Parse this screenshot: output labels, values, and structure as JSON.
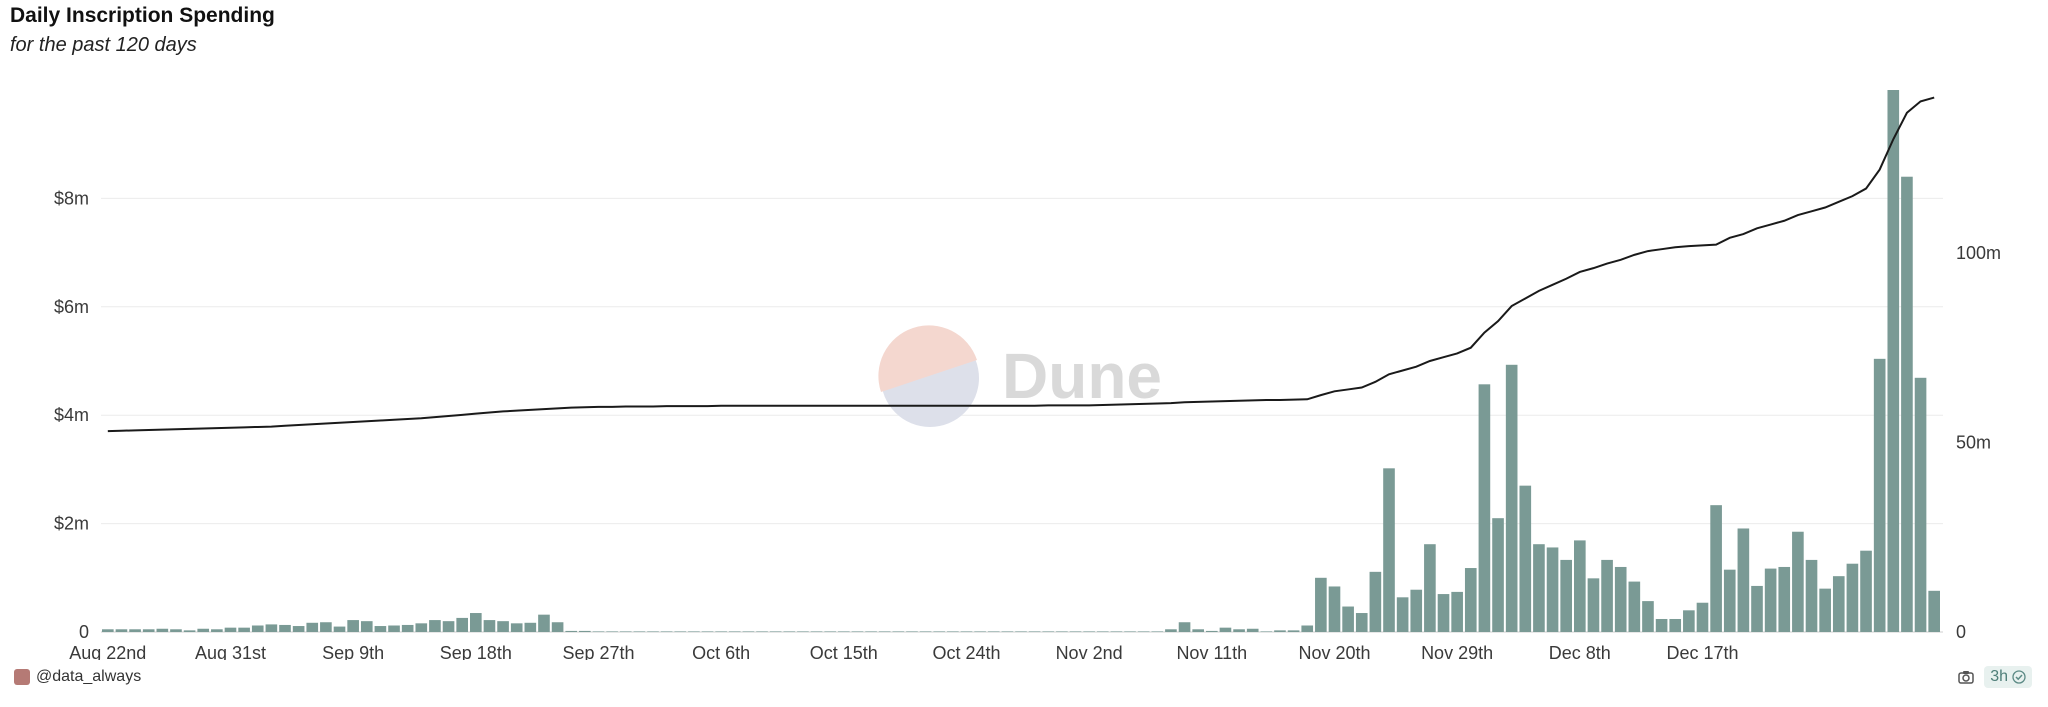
{
  "header": {
    "title": "Daily Inscription Spending",
    "subtitle": "for the past 120 days"
  },
  "watermark": {
    "text": "Dune"
  },
  "footer": {
    "user": "@data_always",
    "refresh_age": "3h",
    "icons": {
      "user": "avatar-icon",
      "camera": "camera-icon",
      "check": "check-icon"
    }
  },
  "colors": {
    "bar": "#7a9a95",
    "line": "#1a1a1a",
    "grid": "#ececec",
    "footer_accent": "#5c8a85"
  },
  "chart_data": {
    "type": "bar",
    "title": "Daily Inscription Spending",
    "subtitle": "for the past 120 days",
    "x_start": "Aug 22",
    "x_ticks": [
      "Aug 22nd",
      "Aug 31st",
      "Sep 9th",
      "Sep 18th",
      "Sep 27th",
      "Oct 6th",
      "Oct 15th",
      "Oct 24th",
      "Nov 2nd",
      "Nov 11th",
      "Nov 20th",
      "Nov 29th",
      "Dec 8th",
      "Dec 17th"
    ],
    "y_left": {
      "ticks": [
        0,
        2,
        4,
        6,
        8
      ],
      "tick_labels": [
        "0",
        "$2m",
        "$4m",
        "$6m",
        "$8m"
      ],
      "range_millions": [
        0,
        10
      ]
    },
    "y_right": {
      "ticks": [
        0,
        50,
        100
      ],
      "tick_labels": [
        "0",
        "50m",
        "100m"
      ],
      "range_millions": [
        0,
        143
      ]
    },
    "grid": true,
    "series": [
      {
        "type": "bar",
        "axis": "left",
        "unit": "$m",
        "values": [
          0.05,
          0.05,
          0.05,
          0.05,
          0.06,
          0.05,
          0.03,
          0.06,
          0.05,
          0.08,
          0.08,
          0.12,
          0.14,
          0.13,
          0.11,
          0.17,
          0.18,
          0.1,
          0.22,
          0.2,
          0.11,
          0.12,
          0.13,
          0.16,
          0.22,
          0.2,
          0.26,
          0.35,
          0.22,
          0.2,
          0.16,
          0.17,
          0.32,
          0.18,
          0.02,
          0.02,
          0.01,
          0.01,
          0.01,
          0.01,
          0.01,
          0.01,
          0.01,
          0.01,
          0.01,
          0.01,
          0.01,
          0.01,
          0.01,
          0.01,
          0.01,
          0.01,
          0.01,
          0.01,
          0.01,
          0.01,
          0.01,
          0.01,
          0.01,
          0.01,
          0.01,
          0.01,
          0.01,
          0.01,
          0.01,
          0.01,
          0.01,
          0.01,
          0.01,
          0.01,
          0.01,
          0.01,
          0.01,
          0.01,
          0.01,
          0.01,
          0.01,
          0.01,
          0.05,
          0.18,
          0.05,
          0.02,
          0.08,
          0.05,
          0.06,
          0.01,
          0.03,
          0.03,
          0.12,
          1.0,
          0.84,
          0.47,
          0.35,
          1.11,
          3.02,
          0.64,
          0.78,
          1.62,
          0.7,
          0.74,
          1.18,
          4.57,
          2.1,
          4.93,
          2.7,
          1.62,
          1.56,
          1.33,
          1.69,
          0.99,
          1.33,
          1.2,
          0.93,
          0.57,
          0.24,
          0.24,
          0.4,
          0.54,
          2.34,
          1.15,
          1.91,
          0.85,
          1.17,
          1.2,
          1.85,
          1.33,
          0.8,
          1.03,
          1.26,
          1.5,
          5.04,
          10.0,
          8.4,
          4.69,
          0.76
        ]
      },
      {
        "type": "line",
        "axis": "right",
        "unit": "m",
        "values": [
          53.0,
          53.1,
          53.2,
          53.3,
          53.4,
          53.5,
          53.6,
          53.7,
          53.8,
          53.9,
          54.0,
          54.1,
          54.2,
          54.4,
          54.6,
          54.8,
          55.0,
          55.2,
          55.4,
          55.6,
          55.8,
          56.0,
          56.2,
          56.4,
          56.7,
          57.0,
          57.3,
          57.6,
          57.9,
          58.2,
          58.4,
          58.6,
          58.8,
          59.0,
          59.2,
          59.3,
          59.4,
          59.4,
          59.5,
          59.5,
          59.5,
          59.6,
          59.6,
          59.6,
          59.6,
          59.7,
          59.7,
          59.7,
          59.7,
          59.7,
          59.7,
          59.7,
          59.7,
          59.7,
          59.7,
          59.7,
          59.7,
          59.7,
          59.7,
          59.7,
          59.7,
          59.7,
          59.7,
          59.7,
          59.7,
          59.7,
          59.7,
          59.7,
          59.7,
          59.8,
          59.8,
          59.8,
          59.8,
          59.9,
          60.0,
          60.1,
          60.2,
          60.3,
          60.4,
          60.6,
          60.7,
          60.8,
          60.9,
          61.0,
          61.1,
          61.2,
          61.2,
          61.3,
          61.4,
          62.5,
          63.5,
          64.0,
          64.5,
          66.0,
          68.0,
          69.0,
          70.0,
          71.5,
          72.5,
          73.5,
          75.0,
          79.0,
          82.0,
          86.0,
          88.0,
          90.0,
          91.6,
          93.2,
          95.0,
          96.0,
          97.2,
          98.2,
          99.5,
          100.5,
          101.0,
          101.5,
          101.8,
          102.0,
          102.2,
          104.0,
          105.0,
          106.5,
          107.5,
          108.5,
          110.0,
          111.0,
          112.0,
          113.5,
          115.0,
          117.0,
          122.0,
          130.0,
          137.0,
          140.0,
          141.0
        ]
      }
    ]
  }
}
